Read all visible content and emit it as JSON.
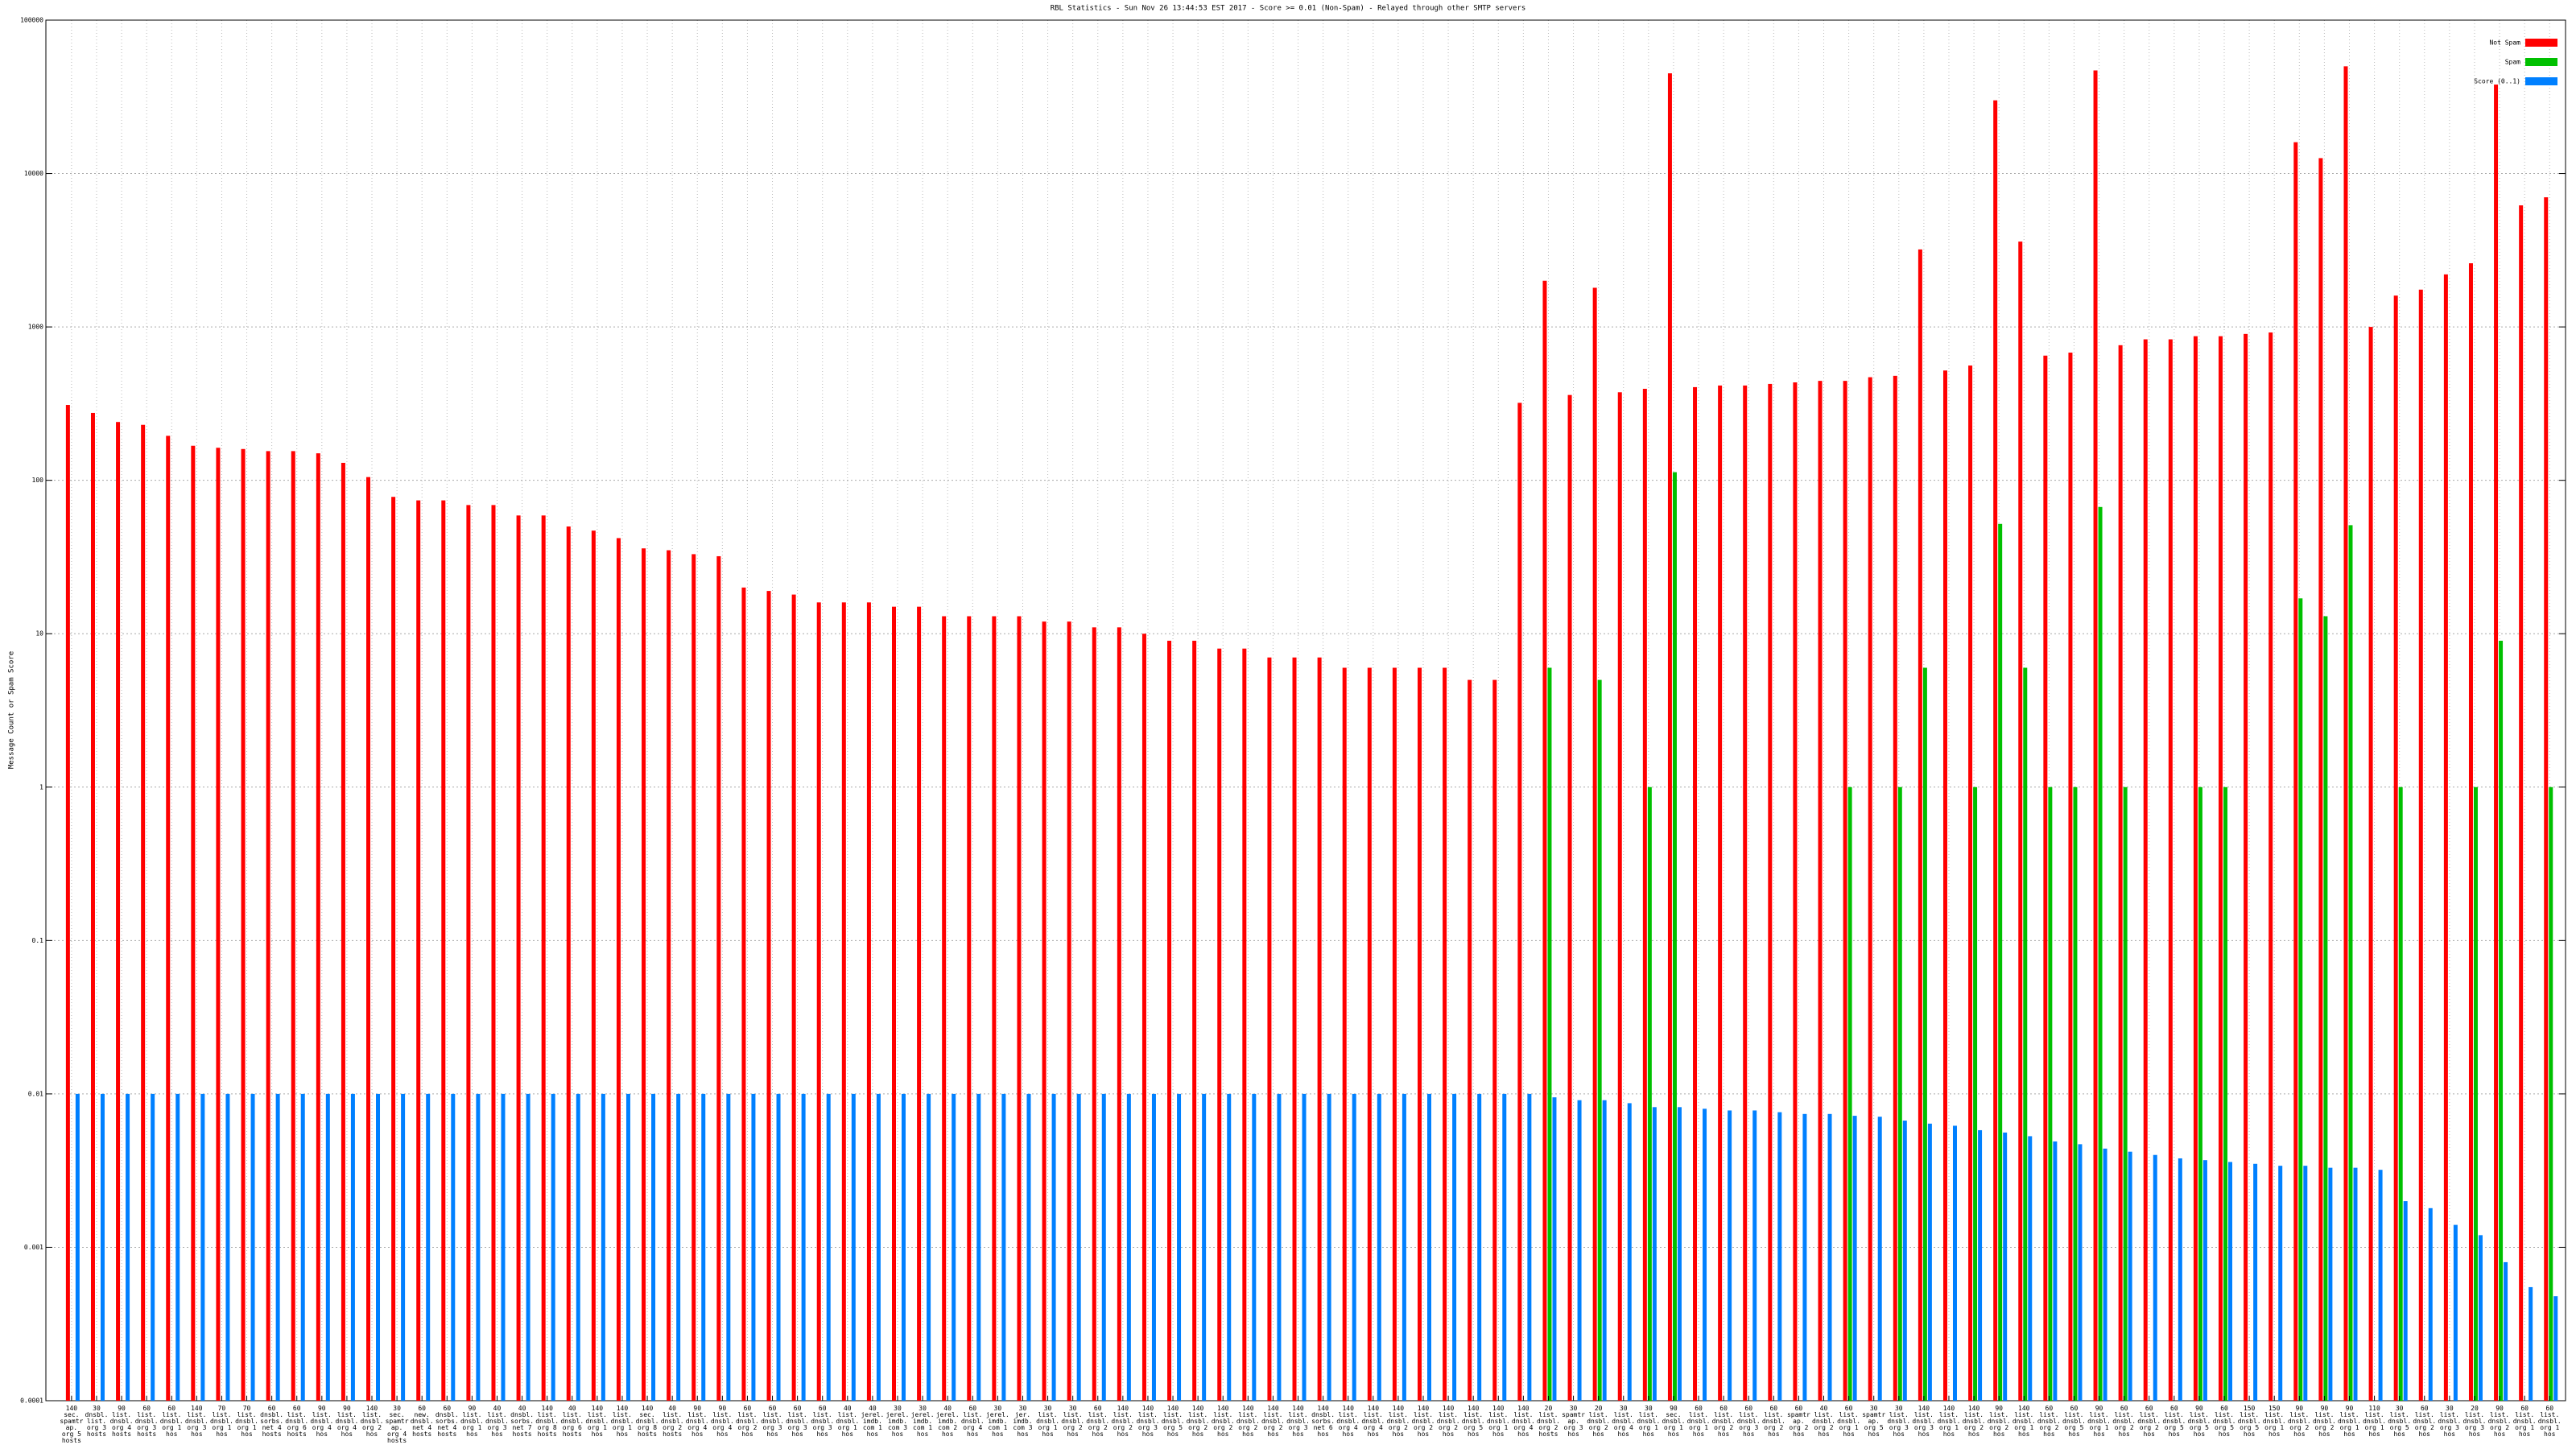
{
  "chart_data": {
    "type": "bar",
    "log_scale": true,
    "grid": true,
    "legend": "upper right",
    "title": "RBL Statistics - Sun Nov 26 13:44:53 EST 2017 - Score >= 0.01 (Non-Spam) - Relayed through other SMTP servers",
    "y_label": "Message Count or Spam Score",
    "ylim": [
      0.0001,
      100000
    ],
    "yticks": [
      0.0001,
      0.001,
      0.01,
      0.1,
      1,
      10,
      100,
      1000,
      10000,
      100000
    ],
    "categories": [
      "140 sec. spamtrap. org 5 hosts",
      "30 dnsbl. list. org 3 hosts",
      "90 list. dnsbl. org 4 hosts",
      "60 list. dnsbl. org 3 hosts",
      "60 list. dnsbl. org 1 hos",
      "140 list. dnsbl. org 3 hos",
      "70 list. dnsbl. org 1 hos",
      "70 list. dnsbl. org 1 hos",
      "60 dnsbl. sorbs. net 4 hosts",
      "60 list. dnsbl. org 6 hosts",
      "90 list. dnsbl. org 4 hos",
      "90 list. dnsbl. org 4 hos",
      "140 list. dnsbl. org 2 hos",
      "30 sec. spamtrap. org 4 hosts",
      "60 new. dnsbl. net 4 hosts",
      "60 dnsbl. sorbs. net 4 hosts",
      "90 list. dnsbl. org 1 hos",
      "40 list. dnsbl. org 3 hos",
      "40 dnsbl. sorbs. net 7 hosts",
      "140 list. dnsbl. org 8 hosts",
      "40 list. dnsbl. org 6 hosts",
      "140 list. dnsbl. org 1 hos",
      "140 list. dnsbl. org 1 hos",
      "140 sec. dnsbl. org 8 hosts",
      "40 list. dnsbl. org 2 hosts",
      "90 list. dnsbl. org 4 hos",
      "90 list. dnsbl. org 4 hos",
      "60 list. dnsbl. org 2 hos",
      "60 list. dnsbl. org 3 hos",
      "60 list. dnsbl. org 3 hos",
      "60 list. dnsbl. org 3 hos",
      "40 list. dnsbl. org 1 hos",
      "40 jerel. imdb. com 1 hos",
      "30 jerel. imdb. com 3 hos",
      "30 jerel. imdb. com 1 hos",
      "40 jerel. imdb. com 2 hos",
      "60 list. dnsbl. org 4 hos",
      "30 jerel. imdb. com 1 hos",
      "30 jer. imdb. com 3 hos",
      "30 list. dnsbl. org 1 hos",
      "30 list. dnsbl. org 2 hos",
      "60 list. dnsbl. org 2 hos",
      "140 list. dnsbl. org 2 hos",
      "140 list. dnsbl. org 3 hos",
      "140 list. dnsbl. org 5 hos",
      "140 list. dnsbl. org 2 hos",
      "140 list. dnsbl. org 2 hos",
      "140 list. dnsbl. org 2 hos",
      "140 list. dnsbl. org 2 hos",
      "140 list. dnsbl. org 3 hos",
      "140 dnsbl. sorbs. net 6 hos",
      "140 list. dnsbl. org 4 hos",
      "140 list. dnsbl. org 4 hos",
      "140 list. dnsbl. org 2 hos",
      "140 list. dnsbl. org 2 hos",
      "140 list. dnsbl. org 2 hos",
      "140 list. dnsbl. org 5 hos",
      "140 list. dnsbl. org 1 hos",
      "140 list. dnsbl. org 4 hos",
      "20 list. dnsbl. org 2 hosts",
      "30 spamtrap. org 3 hos",
      "20 list. dnsbl. org 2 hos",
      "30 list. dnsbl. org 4 hos",
      "30 list. dnsbl. org 1 hos",
      "90 sec. dnsbl. org 1 hos",
      "60 list. dnsbl. org 1 hos",
      "60 list. dnsbl. org 2 hos",
      "60 list. dnsbl. org 3 hos",
      "60 list. dnsbl. org 2 hos",
      "60 spamtrap. org 2 hos",
      "40 list. dnsbl. org 2 hos",
      "60 list. dnsbl. org 1 hos",
      "30 spamtrap. org 5 hos",
      "30 list. dnsbl. org 3 hos",
      "140 list. dnsbl. org 3 hos",
      "140 list. dnsbl. org 1 hos",
      "140 list. dnsbl. org 2 hos",
      "90 list. dnsbl. org 2 hos",
      "140 list. dnsbl. org 1 hos",
      "60 list. dnsbl. org 2 hos",
      "60 list. dnsbl. org 5 hos",
      "90 list. dnsbl. org 1 hos",
      "60 list. dnsbl. org 2 hos",
      "60 list. dnsbl. org 2 hos",
      "60 list. dnsbl. org 5 hos",
      "90 list. dnsbl. org 5 hos",
      "60 list. dnsbl. org 5 hos",
      "150 list. dnsbl. org 5 hos",
      "150 list. dnsbl. org 1 hos",
      "90 list. dnsbl. org 2 hos",
      "90 list. dnsbl. org 2 hos",
      "90 list. dnsbl. org 1 hos",
      "110 list. dnsbl. org 1 hos",
      "30 list. dnsbl. org 5 hos",
      "60 list. dnsbl. org 2 hos",
      "30 list. dnsbl. org 3 hos",
      "20 list. dnsbl. org 3 hos",
      "90 list. dnsbl. org 2 hos",
      "60 list. dnsbl. org 1 hos",
      "60 list. dnsbl. org 1 hos"
    ],
    "series": [
      {
        "name": "Not Spam",
        "color": "#ff0000",
        "values": [
          310,
          275,
          240,
          230,
          195,
          168,
          163,
          160,
          155,
          155,
          150,
          130,
          105,
          78,
          74,
          74,
          69,
          69,
          59,
          59,
          50,
          47,
          42,
          36,
          35,
          33,
          32,
          20,
          19,
          18,
          16,
          16,
          16,
          15,
          15,
          13,
          13,
          13,
          13,
          12,
          12,
          11,
          11,
          10,
          9,
          9,
          8,
          8,
          7,
          7,
          7,
          6,
          6,
          6,
          6,
          6,
          5,
          5,
          320,
          2000,
          360,
          1800,
          375,
          395,
          45000,
          405,
          415,
          415,
          425,
          435,
          445,
          445,
          470,
          480,
          3200,
          520,
          560,
          30000,
          3600,
          650,
          680,
          47000,
          760,
          830,
          830,
          870,
          870,
          900,
          920,
          16000,
          12600,
          50000,
          1000,
          1600,
          1750,
          2200,
          2600,
          38000,
          6200,
          7000
        ]
      },
      {
        "name": "Spam",
        "color": "#00c000",
        "values": [
          null,
          null,
          null,
          null,
          null,
          null,
          null,
          null,
          null,
          null,
          null,
          null,
          null,
          null,
          null,
          null,
          null,
          null,
          null,
          null,
          null,
          null,
          null,
          null,
          null,
          null,
          null,
          null,
          null,
          null,
          null,
          null,
          null,
          null,
          null,
          null,
          null,
          null,
          null,
          null,
          null,
          null,
          null,
          null,
          null,
          null,
          null,
          null,
          null,
          null,
          null,
          null,
          null,
          null,
          null,
          null,
          null,
          null,
          null,
          6,
          null,
          5,
          null,
          1,
          113,
          null,
          null,
          null,
          null,
          null,
          null,
          1,
          null,
          1,
          6,
          null,
          1,
          52,
          6,
          1,
          1,
          67,
          1,
          null,
          null,
          1,
          1,
          null,
          null,
          17,
          13,
          51,
          null,
          1,
          null,
          null,
          1,
          9,
          null,
          1
        ]
      },
      {
        "name": "Score (0..1)",
        "color": "#0080ff",
        "values": [
          0.01,
          0.01,
          0.01,
          0.01,
          0.01,
          0.01,
          0.01,
          0.01,
          0.01,
          0.01,
          0.01,
          0.01,
          0.01,
          0.01,
          0.01,
          0.01,
          0.01,
          0.01,
          0.01,
          0.01,
          0.01,
          0.01,
          0.01,
          0.01,
          0.01,
          0.01,
          0.01,
          0.01,
          0.01,
          0.01,
          0.01,
          0.01,
          0.01,
          0.01,
          0.01,
          0.01,
          0.01,
          0.01,
          0.01,
          0.01,
          0.01,
          0.01,
          0.01,
          0.01,
          0.01,
          0.01,
          0.01,
          0.01,
          0.01,
          0.01,
          0.01,
          0.01,
          0.01,
          0.01,
          0.01,
          0.01,
          0.01,
          0.01,
          0.01,
          0.0095,
          0.0091,
          0.0091,
          0.0087,
          0.0082,
          0.0082,
          0.008,
          0.0078,
          0.0078,
          0.0076,
          0.0074,
          0.0074,
          0.0072,
          0.0071,
          0.0067,
          0.0064,
          0.0062,
          0.0058,
          0.0056,
          0.0053,
          0.0049,
          0.0047,
          0.0044,
          0.0042,
          0.004,
          0.0038,
          0.0037,
          0.0036,
          0.0035,
          0.0034,
          0.0034,
          0.0033,
          0.0033,
          0.0032,
          0.002,
          0.0018,
          0.0014,
          0.0012,
          0.0008,
          0.00055,
          0.00048
        ]
      }
    ]
  }
}
